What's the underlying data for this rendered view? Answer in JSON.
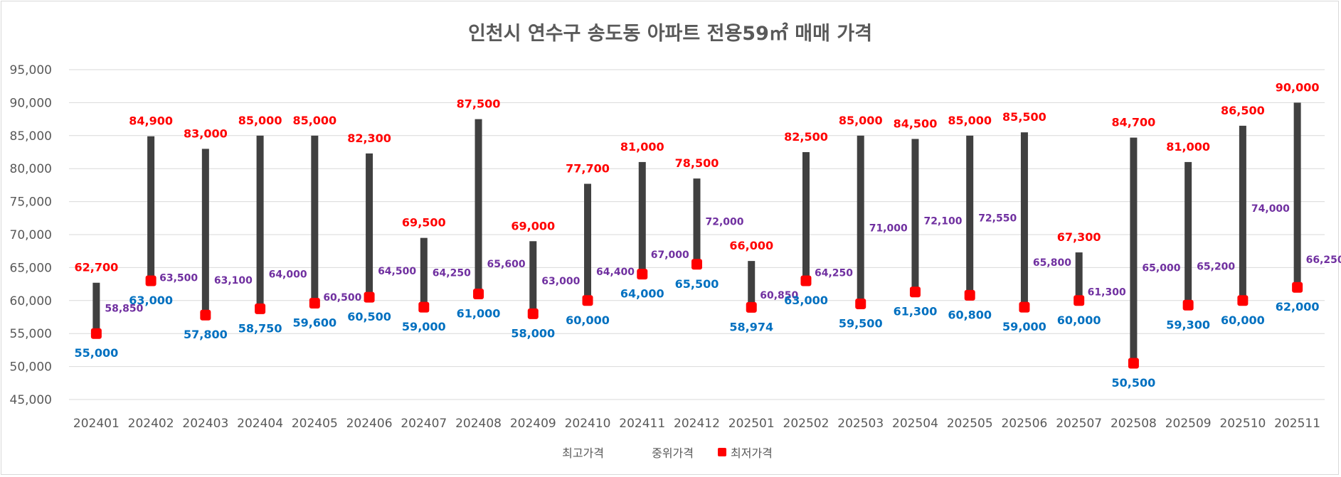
{
  "chart_data": {
    "type": "stock",
    "title": "인천시 연수구 송도동 아파트 전용59㎡ 매매 가격",
    "categories": [
      "202401",
      "202402",
      "202403",
      "202404",
      "202405",
      "202406",
      "202407",
      "202408",
      "202409",
      "202410",
      "202411",
      "202412",
      "202501",
      "202502",
      "202503",
      "202504",
      "202505",
      "202506",
      "202507",
      "202508",
      "202509",
      "202510",
      "202511"
    ],
    "ylim": [
      45000,
      95000
    ],
    "yticks": [
      45000,
      50000,
      55000,
      60000,
      65000,
      70000,
      75000,
      80000,
      85000,
      90000,
      95000
    ],
    "ytick_labels": [
      "45,000",
      "50,000",
      "55,000",
      "60,000",
      "65,000",
      "70,000",
      "75,000",
      "80,000",
      "85,000",
      "90,000",
      "95,000"
    ],
    "series": [
      {
        "name": "최고가격",
        "color": "#ff0000",
        "values": [
          62700,
          84900,
          83000,
          85000,
          85000,
          82300,
          69500,
          87500,
          69000,
          77700,
          81000,
          78500,
          66000,
          82500,
          85000,
          84500,
          85000,
          85500,
          67300,
          84700,
          81000,
          86500,
          90000
        ],
        "labels": [
          "62,700",
          "84,900",
          "83,000",
          "85,000",
          "85,000",
          "82,300",
          "69,500",
          "87,500",
          "69,000",
          "77,700",
          "81,000",
          "78,500",
          "66,000",
          "82,500",
          "85,000",
          "84,500",
          "85,000",
          "85,500",
          "67,300",
          "84,700",
          "81,000",
          "86,500",
          "90,000"
        ]
      },
      {
        "name": "중위가격",
        "color": "#7030a0",
        "values": [
          58850,
          63500,
          63100,
          64000,
          60500,
          64500,
          64250,
          65600,
          63000,
          64400,
          67000,
          72000,
          60850,
          64250,
          71000,
          72100,
          72550,
          65800,
          61300,
          65000,
          65200,
          74000,
          66250
        ],
        "labels": [
          "58,850",
          "63,500",
          "63,100",
          "64,000",
          "60,500",
          "64,500",
          "64,250",
          "65,600",
          "63,000",
          "64,400",
          "67,000",
          "72,000",
          "60,850",
          "64,250",
          "71,000",
          "72,100",
          "72,550",
          "65,800",
          "61,300",
          "65,000",
          "65,200",
          "74,000",
          "66,250"
        ]
      },
      {
        "name": "최저가격",
        "color": "#0070c0",
        "marker_color": "#ff0000",
        "values": [
          55000,
          63000,
          57800,
          58750,
          59600,
          60500,
          59000,
          61000,
          58000,
          60000,
          64000,
          65500,
          58974,
          63000,
          59500,
          61300,
          60800,
          59000,
          60000,
          50500,
          59300,
          60000,
          62000
        ],
        "labels": [
          "55,000",
          "63,000",
          "57,800",
          "58,750",
          "59,600",
          "60,500",
          "59,000",
          "61,000",
          "58,000",
          "60,000",
          "64,000",
          "65,500",
          "58,974",
          "63,000",
          "59,500",
          "61,300",
          "60,800",
          "59,000",
          "60,000",
          "50,500",
          "59,300",
          "60,000",
          "62,000"
        ]
      }
    ],
    "legend": [
      "최고가격",
      "중위가격",
      "최저가격"
    ],
    "legend_position": "bottom",
    "grid": true
  }
}
